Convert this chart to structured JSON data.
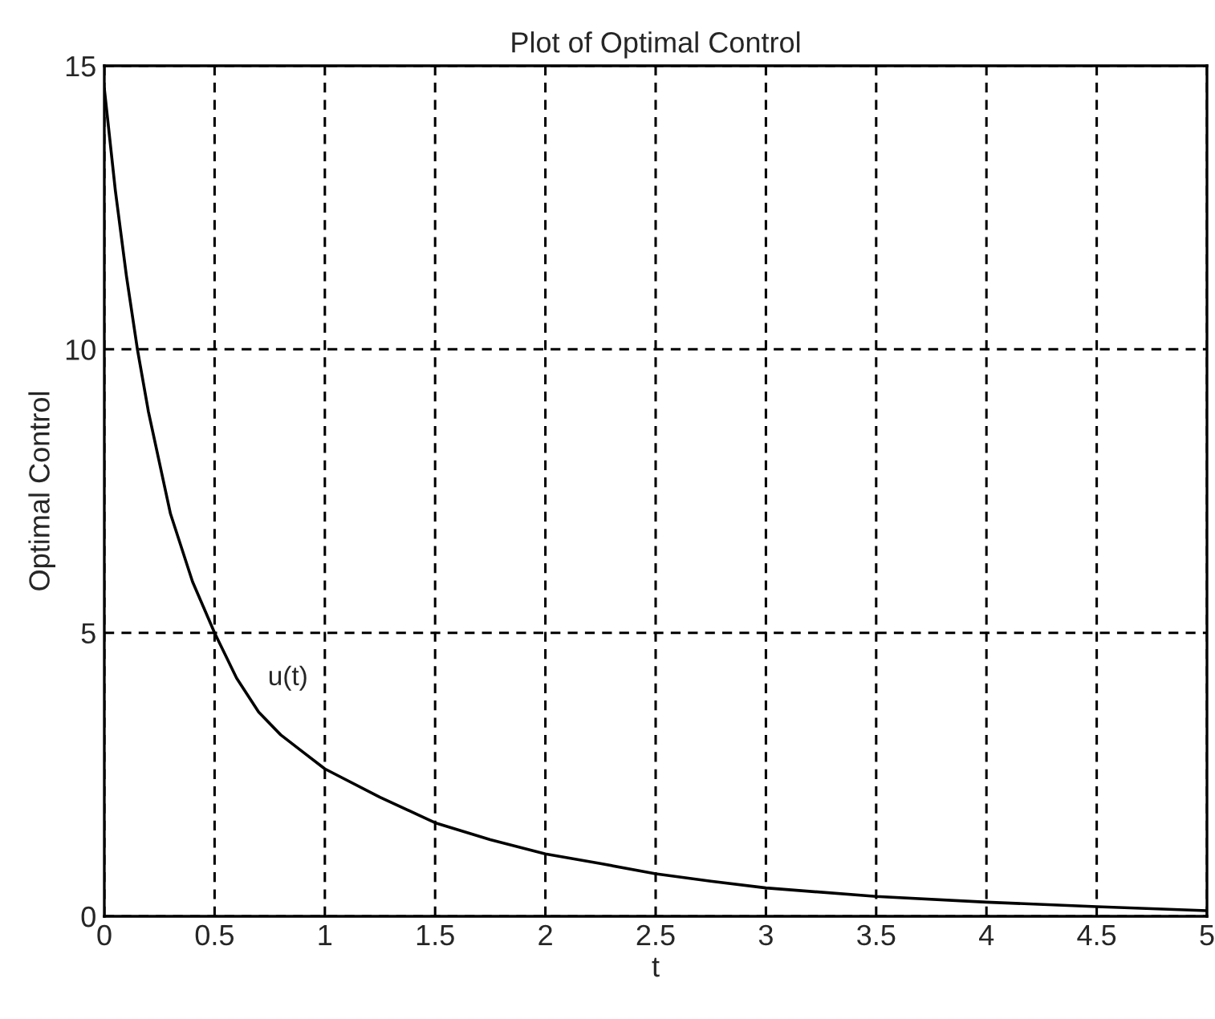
{
  "chart_data": {
    "type": "line",
    "title": "Plot of Optimal Control",
    "xlabel": "t",
    "ylabel": "Optimal Control",
    "x": [
      0,
      0.05,
      0.1,
      0.15,
      0.2,
      0.3,
      0.4,
      0.5,
      0.6,
      0.7,
      0.8,
      0.9,
      1.0,
      1.25,
      1.5,
      1.75,
      2.0,
      2.25,
      2.5,
      2.75,
      3.0,
      3.5,
      4.0,
      4.5,
      5.0
    ],
    "series": [
      {
        "name": "u(t)",
        "color": "#000000",
        "values": [
          14.6,
          12.8,
          11.3,
          10.0,
          8.9,
          7.1,
          5.9,
          5.0,
          4.2,
          3.6,
          3.2,
          2.9,
          2.6,
          2.1,
          1.65,
          1.35,
          1.1,
          0.93,
          0.75,
          0.62,
          0.5,
          0.35,
          0.25,
          0.17,
          0.1
        ]
      }
    ],
    "xlim": [
      0,
      5
    ],
    "ylim": [
      0,
      15
    ],
    "xticks": [
      0,
      0.5,
      1,
      1.5,
      2,
      2.5,
      3,
      3.5,
      4,
      4.5,
      5
    ],
    "yticks": [
      0,
      5,
      10,
      15
    ],
    "grid": true,
    "legend": false,
    "marker": "none",
    "line_style": "solid"
  }
}
